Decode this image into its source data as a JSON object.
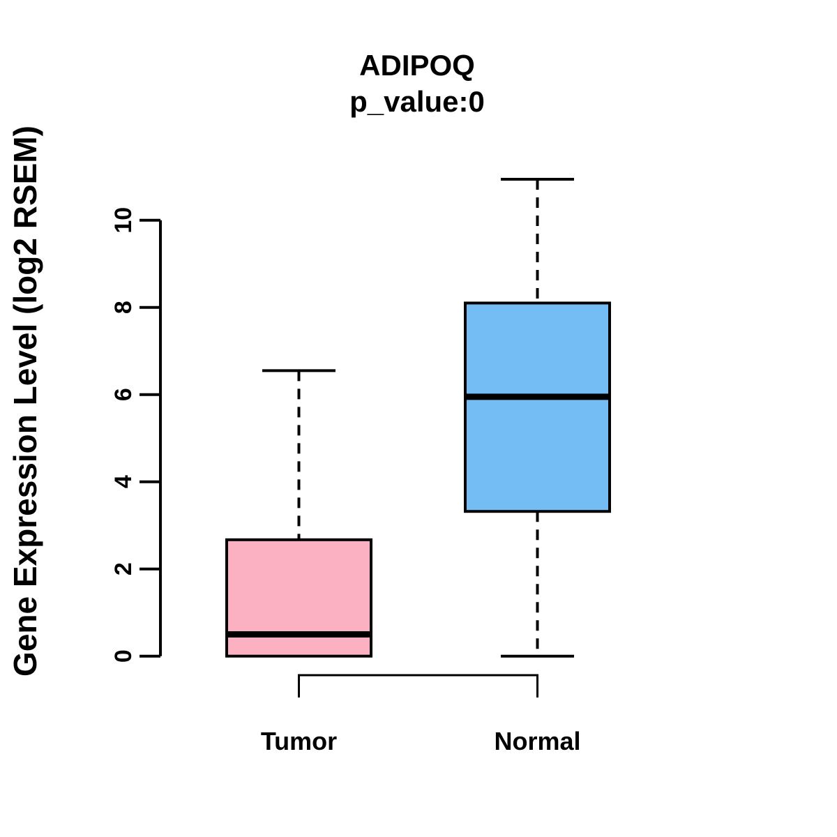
{
  "chart_data": {
    "type": "boxplot",
    "title": "ADIPOQ",
    "subtitle": "p_value:0",
    "ylabel": "Gene Expression Level (log2 RSEM)",
    "xlabel": "",
    "ylim": [
      0,
      10
    ],
    "yticks": [
      0,
      2,
      4,
      6,
      8,
      10
    ],
    "grid": "off",
    "categories": [
      "Tumor",
      "Normal"
    ],
    "series": [
      {
        "name": "Tumor",
        "lower_whisker": 0,
        "q1": 0,
        "median": 0.5,
        "q3": 2.67,
        "upper_whisker": 6.55,
        "fill": "#FCB1C3"
      },
      {
        "name": "Normal",
        "lower_whisker": 0,
        "q1": 3.32,
        "median": 5.95,
        "q3": 8.1,
        "upper_whisker": 10.94,
        "fill": "#73BDF4"
      }
    ],
    "significance_bracket": {
      "connects": [
        "Tumor",
        "Normal"
      ],
      "label": ""
    },
    "line_color": "#000000",
    "background_color": "#FFFFFF"
  }
}
